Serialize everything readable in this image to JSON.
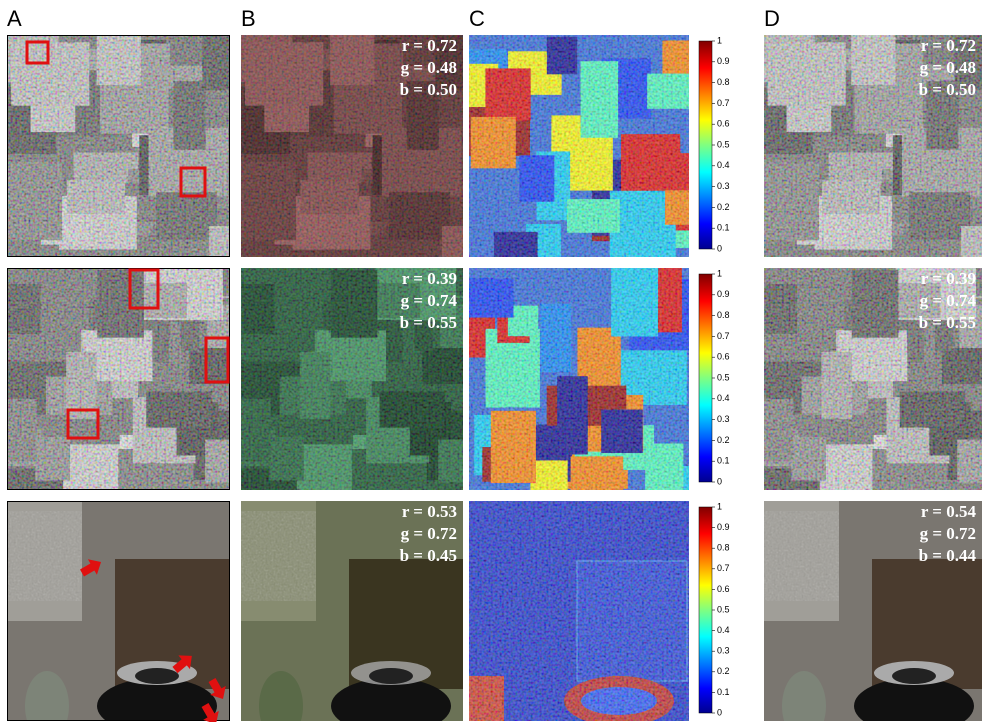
{
  "columns": [
    "A",
    "B",
    "C",
    "D"
  ],
  "rows": [
    {
      "b_labels": [
        "r = 0.72",
        "g = 0.48",
        "b = 0.50"
      ],
      "d_labels": [
        "r = 0.72",
        "g = 0.48",
        "b = 0.50"
      ]
    },
    {
      "b_labels": [
        "r = 0.39",
        "g = 0.74",
        "b = 0.55"
      ],
      "d_labels": [
        "r = 0.39",
        "g = 0.74",
        "b = 0.55"
      ]
    },
    {
      "b_labels": [
        "r = 0.53",
        "g = 0.72",
        "b = 0.45"
      ],
      "d_labels": [
        "r = 0.54",
        "g = 0.72",
        "b = 0.44"
      ]
    }
  ],
  "colorbar": {
    "ticks": [
      0,
      0.1,
      0.2,
      0.3,
      0.4,
      0.5,
      0.6,
      0.7,
      0.8,
      0.9,
      1
    ]
  }
}
